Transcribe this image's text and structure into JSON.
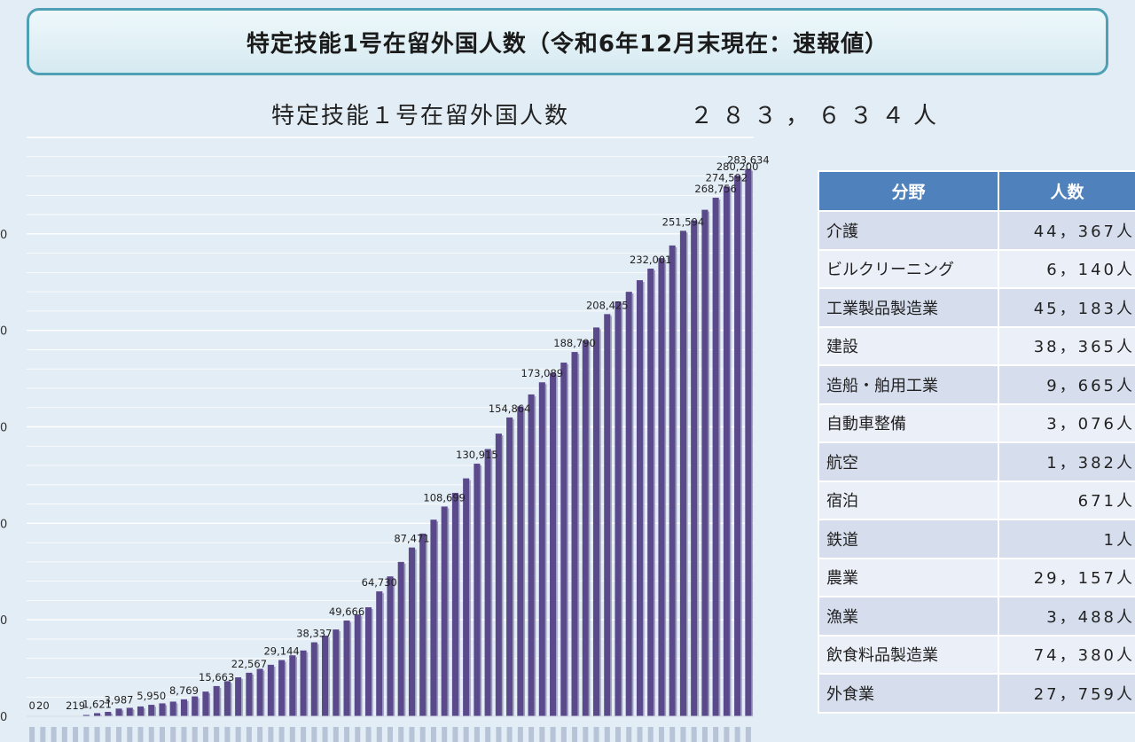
{
  "header": {
    "title": "特定技能1号在留外国人数（令和6年12月末現在：速報値）"
  },
  "summary": {
    "label": "特定技能１号在留外国人数",
    "total": "２８３，６３４人"
  },
  "chart_data": {
    "type": "bar",
    "title": "特定技能１号在留外国人数",
    "ylim": [
      0,
      300000
    ],
    "ytick_labels_visible_partial": [
      "0",
      "0",
      "0",
      "0",
      "0",
      "0"
    ],
    "values": [
      0,
      20,
      30,
      60,
      219,
      700,
      1621,
      2300,
      3987,
      4400,
      5100,
      5950,
      6700,
      7600,
      8769,
      10300,
      12800,
      15663,
      18200,
      20200,
      22567,
      24600,
      26700,
      29144,
      31600,
      34100,
      38337,
      41800,
      45000,
      49666,
      52800,
      56500,
      64730,
      72500,
      80000,
      87471,
      94700,
      101900,
      108699,
      115800,
      123300,
      130915,
      138500,
      146500,
      154864,
      160600,
      166800,
      173089,
      178000,
      183300,
      188790,
      194800,
      201500,
      208425,
      215000,
      220000,
      226000,
      232001,
      237500,
      244000,
      251594,
      257000,
      262500,
      268756,
      274592,
      280200,
      283634
    ],
    "data_labels": [
      {
        "i": 0,
        "text": "0"
      },
      {
        "i": 1,
        "text": "20"
      },
      {
        "i": 4,
        "text": "219"
      },
      {
        "i": 6,
        "text": "1,621"
      },
      {
        "i": 8,
        "text": "3,987"
      },
      {
        "i": 11,
        "text": "5,950"
      },
      {
        "i": 14,
        "text": "8,769"
      },
      {
        "i": 17,
        "text": "15,663"
      },
      {
        "i": 20,
        "text": "22,567"
      },
      {
        "i": 23,
        "text": "29,144"
      },
      {
        "i": 26,
        "text": "38,337"
      },
      {
        "i": 29,
        "text": "49,666"
      },
      {
        "i": 32,
        "text": "64,730"
      },
      {
        "i": 35,
        "text": "87,471"
      },
      {
        "i": 38,
        "text": "108,699"
      },
      {
        "i": 41,
        "text": "130,915"
      },
      {
        "i": 44,
        "text": "154,864"
      },
      {
        "i": 47,
        "text": "173,089"
      },
      {
        "i": 50,
        "text": "188,790"
      },
      {
        "i": 53,
        "text": "208,425"
      },
      {
        "i": 57,
        "text": "232,001"
      },
      {
        "i": 60,
        "text": "251,594"
      },
      {
        "i": 63,
        "text": "268,756"
      },
      {
        "i": 64,
        "text": "274,592"
      },
      {
        "i": 65,
        "text": "280,200"
      },
      {
        "i": 66,
        "text": "283,634"
      }
    ],
    "bar_color": "#5b4a8b"
  },
  "table": {
    "headers": [
      "分野",
      "人数"
    ],
    "rows": [
      {
        "field": "介護",
        "count": "44，367人"
      },
      {
        "field": "ビルクリーニング",
        "count": "6，140人"
      },
      {
        "field": "工業製品製造業",
        "count": "45，183人"
      },
      {
        "field": "建設",
        "count": "38，365人"
      },
      {
        "field": "造船・舶用工業",
        "count": "9，665人"
      },
      {
        "field": "自動車整備",
        "count": "3，076人"
      },
      {
        "field": "航空",
        "count": "1，382人"
      },
      {
        "field": "宿泊",
        "count": "671人"
      },
      {
        "field": "鉄道",
        "count": "1人"
      },
      {
        "field": "農業",
        "count": "29，157人"
      },
      {
        "field": "漁業",
        "count": "3，488人"
      },
      {
        "field": "飲食料品製造業",
        "count": "74，380人"
      },
      {
        "field": "外食業",
        "count": "27，759人"
      }
    ]
  }
}
